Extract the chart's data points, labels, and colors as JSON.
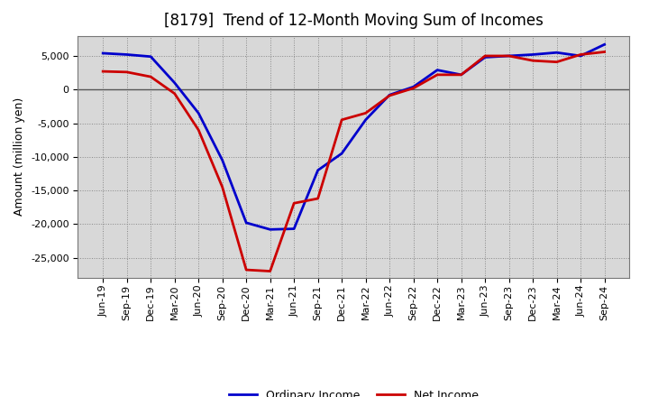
{
  "title": "[8179]  Trend of 12-Month Moving Sum of Incomes",
  "ylabel": "Amount (million yen)",
  "background_color": "#ffffff",
  "plot_bg_color": "#d8d8d8",
  "x_labels": [
    "Jun-19",
    "Sep-19",
    "Dec-19",
    "Mar-20",
    "Jun-20",
    "Sep-20",
    "Dec-20",
    "Mar-21",
    "Jun-21",
    "Sep-21",
    "Dec-21",
    "Mar-22",
    "Jun-22",
    "Sep-22",
    "Dec-22",
    "Mar-23",
    "Jun-23",
    "Sep-23",
    "Dec-23",
    "Mar-24",
    "Jun-24",
    "Sep-24"
  ],
  "ordinary_income": [
    5400,
    5200,
    4900,
    1000,
    -3500,
    -10500,
    -19800,
    -20800,
    -20700,
    -12000,
    -9500,
    -4500,
    -800,
    400,
    2900,
    2200,
    4800,
    5000,
    5200,
    5500,
    5000,
    6700
  ],
  "net_income": [
    2700,
    2600,
    1900,
    -600,
    -6000,
    -14500,
    -26800,
    -27000,
    -16900,
    -16200,
    -4500,
    -3500,
    -900,
    200,
    2200,
    2200,
    5000,
    5000,
    4300,
    4100,
    5200,
    5600
  ],
  "ordinary_color": "#0000cc",
  "net_color": "#cc0000",
  "line_width": 2.0,
  "ylim": [
    -28000,
    8000
  ],
  "yticks": [
    -25000,
    -20000,
    -15000,
    -10000,
    -5000,
    0,
    5000
  ],
  "title_fontsize": 12,
  "axis_fontsize": 8,
  "legend_fontsize": 9
}
